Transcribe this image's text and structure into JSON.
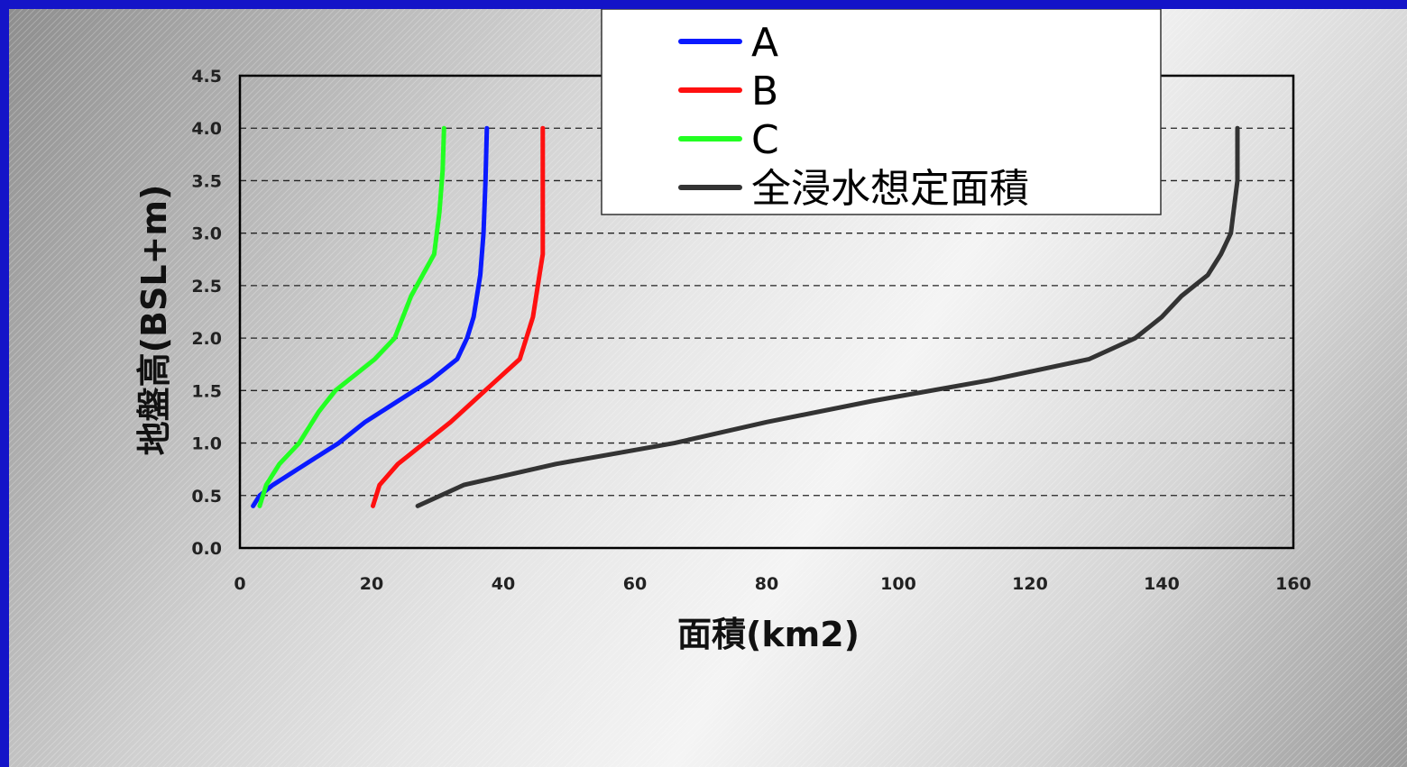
{
  "chart_data": {
    "type": "line",
    "title": "",
    "xlabel": "面積(km2)",
    "ylabel": "地盤高(BSL+m)",
    "xlim": [
      0,
      160
    ],
    "ylim": [
      0,
      4.5
    ],
    "xticks": [
      0,
      20,
      40,
      60,
      80,
      100,
      120,
      140,
      160
    ],
    "yticks": [
      "0.0",
      "0.5",
      "1.0",
      "1.5",
      "2.0",
      "2.5",
      "3.0",
      "3.5",
      "4.0",
      "4.5"
    ],
    "grid": "horizontal dashed",
    "legend_position": "top-center",
    "series": [
      {
        "name": "A",
        "color": "#0a1aff",
        "points": [
          [
            2,
            0.4
          ],
          [
            3,
            0.5
          ],
          [
            5,
            0.6
          ],
          [
            10,
            0.8
          ],
          [
            15,
            1.0
          ],
          [
            19,
            1.2
          ],
          [
            24,
            1.4
          ],
          [
            29,
            1.6
          ],
          [
            33,
            1.8
          ],
          [
            34.5,
            2.0
          ],
          [
            35.5,
            2.2
          ],
          [
            36.5,
            2.6
          ],
          [
            37,
            3.0
          ],
          [
            37.3,
            3.5
          ],
          [
            37.5,
            4.0
          ]
        ]
      },
      {
        "name": "B",
        "color": "#ff1010",
        "points": [
          [
            20.2,
            0.4
          ],
          [
            21.2,
            0.6
          ],
          [
            24,
            0.8
          ],
          [
            28,
            1.0
          ],
          [
            32,
            1.2
          ],
          [
            35.5,
            1.4
          ],
          [
            39,
            1.6
          ],
          [
            42.5,
            1.8
          ],
          [
            44.5,
            2.2
          ],
          [
            45.5,
            2.6
          ],
          [
            46,
            2.8
          ],
          [
            46,
            3.5
          ],
          [
            46,
            4.0
          ]
        ]
      },
      {
        "name": "C",
        "color": "#22ff22",
        "points": [
          [
            3,
            0.4
          ],
          [
            4,
            0.6
          ],
          [
            6,
            0.8
          ],
          [
            9,
            1.0
          ],
          [
            12,
            1.3
          ],
          [
            14.5,
            1.5
          ],
          [
            20.5,
            1.8
          ],
          [
            23.5,
            2.0
          ],
          [
            26,
            2.4
          ],
          [
            29.5,
            2.8
          ],
          [
            30.3,
            3.2
          ],
          [
            30.8,
            3.6
          ],
          [
            31,
            4.0
          ]
        ]
      },
      {
        "name": "全浸水想定面積",
        "color": "#333333",
        "points": [
          [
            27,
            0.4
          ],
          [
            34,
            0.6
          ],
          [
            48,
            0.8
          ],
          [
            66,
            1.0
          ],
          [
            80,
            1.2
          ],
          [
            96,
            1.4
          ],
          [
            114,
            1.6
          ],
          [
            129,
            1.8
          ],
          [
            136,
            2.0
          ],
          [
            140,
            2.2
          ],
          [
            143,
            2.4
          ],
          [
            147,
            2.6
          ],
          [
            149,
            2.8
          ],
          [
            150.5,
            3.0
          ],
          [
            151.5,
            3.5
          ],
          [
            151.5,
            4.0
          ]
        ]
      }
    ]
  }
}
